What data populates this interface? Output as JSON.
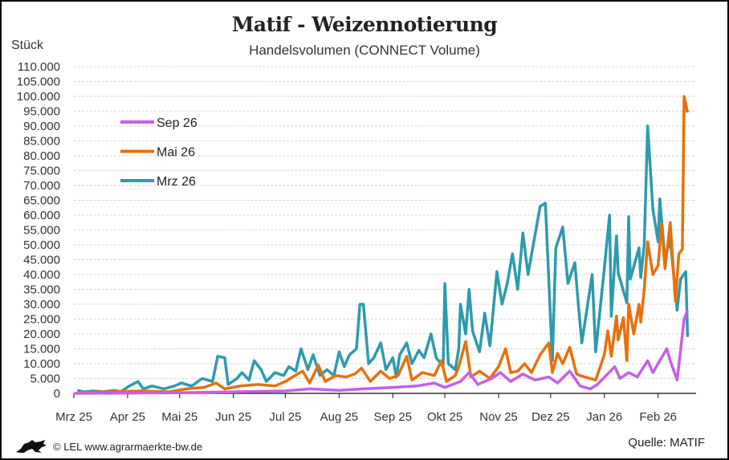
{
  "header": {
    "title": "Matif - Weizennotierung",
    "subtitle": "Handelsvolumen (CONNECT Volume)",
    "unit": "Stück"
  },
  "footer": {
    "copyright": "© LEL www.agrarmaerkte-bw.de",
    "source": "Quelle: MATIF",
    "logo_icon": "lion-icon"
  },
  "chart_data": {
    "type": "line",
    "title": "Matif - Weizennotierung",
    "subtitle": "Handelsvolumen (CONNECT Volume)",
    "ylabel": "Stück",
    "ylim": [
      0,
      110000
    ],
    "yticks": [
      "0",
      "5.000",
      "10.000",
      "15.000",
      "20.000",
      "25.000",
      "30.000",
      "35.000",
      "40.000",
      "45.000",
      "50.000",
      "55.000",
      "60.000",
      "65.000",
      "70.000",
      "75.000",
      "80.000",
      "85.000",
      "90.000",
      "95.000",
      "100.000",
      "105.000",
      "110.000"
    ],
    "xlim": [
      "2025-03-01",
      "2026-03-01"
    ],
    "xticks": [
      {
        "date": "2025-03-01",
        "label": "Mrz 25"
      },
      {
        "date": "2025-04-01",
        "label": "Apr 25"
      },
      {
        "date": "2025-05-01",
        "label": "Mai 25"
      },
      {
        "date": "2025-06-01",
        "label": "Jun 25"
      },
      {
        "date": "2025-07-01",
        "label": "Jul 25"
      },
      {
        "date": "2025-08-01",
        "label": "Aug 25"
      },
      {
        "date": "2025-09-01",
        "label": "Sep 25"
      },
      {
        "date": "2025-10-01",
        "label": "Okt 25"
      },
      {
        "date": "2025-11-01",
        "label": "Nov 25"
      },
      {
        "date": "2025-12-01",
        "label": "Dez 25"
      },
      {
        "date": "2026-01-01",
        "label": "Jan 26"
      },
      {
        "date": "2026-02-01",
        "label": "Feb 26"
      }
    ],
    "grid": "horizontal dashed",
    "legend_position": "top-left",
    "series": [
      {
        "name": "Mrz 26",
        "color": "#2e9aad",
        "points": [
          [
            "2025-03-03",
            1000
          ],
          [
            "2025-03-07",
            500
          ],
          [
            "2025-03-12",
            800
          ],
          [
            "2025-03-18",
            500
          ],
          [
            "2025-03-24",
            1000
          ],
          [
            "2025-03-28",
            600
          ],
          [
            "2025-04-02",
            2500
          ],
          [
            "2025-04-07",
            4000
          ],
          [
            "2025-04-10",
            1500
          ],
          [
            "2025-04-15",
            2500
          ],
          [
            "2025-04-22",
            1500
          ],
          [
            "2025-04-28",
            2500
          ],
          [
            "2025-05-02",
            3500
          ],
          [
            "2025-05-08",
            2500
          ],
          [
            "2025-05-14",
            5000
          ],
          [
            "2025-05-20",
            4000
          ],
          [
            "2025-05-23",
            12500
          ],
          [
            "2025-05-27",
            12000
          ],
          [
            "2025-05-29",
            3000
          ],
          [
            "2025-06-03",
            5000
          ],
          [
            "2025-06-06",
            7000
          ],
          [
            "2025-06-10",
            4500
          ],
          [
            "2025-06-13",
            11000
          ],
          [
            "2025-06-17",
            8000
          ],
          [
            "2025-06-20",
            4000
          ],
          [
            "2025-06-25",
            7000
          ],
          [
            "2025-06-30",
            6000
          ],
          [
            "2025-07-03",
            9000
          ],
          [
            "2025-07-07",
            7500
          ],
          [
            "2025-07-10",
            15000
          ],
          [
            "2025-07-14",
            8000
          ],
          [
            "2025-07-17",
            13000
          ],
          [
            "2025-07-21",
            6000
          ],
          [
            "2025-07-25",
            8000
          ],
          [
            "2025-07-29",
            6000
          ],
          [
            "2025-08-01",
            14000
          ],
          [
            "2025-08-04",
            9000
          ],
          [
            "2025-08-07",
            13000
          ],
          [
            "2025-08-11",
            15000
          ],
          [
            "2025-08-13",
            30000
          ],
          [
            "2025-08-15",
            30000
          ],
          [
            "2025-08-18",
            10000
          ],
          [
            "2025-08-21",
            12000
          ],
          [
            "2025-08-25",
            17000
          ],
          [
            "2025-08-28",
            8000
          ],
          [
            "2025-09-01",
            12000
          ],
          [
            "2025-09-03",
            5500
          ],
          [
            "2025-09-05",
            13000
          ],
          [
            "2025-09-09",
            17000
          ],
          [
            "2025-09-12",
            10000
          ],
          [
            "2025-09-16",
            14500
          ],
          [
            "2025-09-19",
            12000
          ],
          [
            "2025-09-23",
            20000
          ],
          [
            "2025-09-26",
            12000
          ],
          [
            "2025-09-30",
            9000
          ],
          [
            "2025-10-01",
            37000
          ],
          [
            "2025-10-03",
            10000
          ],
          [
            "2025-10-07",
            8000
          ],
          [
            "2025-10-09",
            15000
          ],
          [
            "2025-10-10",
            30000
          ],
          [
            "2025-10-13",
            20000
          ],
          [
            "2025-10-15",
            35000
          ],
          [
            "2025-10-17",
            21000
          ],
          [
            "2025-10-21",
            14000
          ],
          [
            "2025-10-24",
            27000
          ],
          [
            "2025-10-27",
            16000
          ],
          [
            "2025-10-31",
            41000
          ],
          [
            "2025-11-03",
            30000
          ],
          [
            "2025-11-06",
            37000
          ],
          [
            "2025-11-09",
            47000
          ],
          [
            "2025-11-12",
            35000
          ],
          [
            "2025-11-15",
            54000
          ],
          [
            "2025-11-18",
            40000
          ],
          [
            "2025-11-21",
            50000
          ],
          [
            "2025-11-25",
            63000
          ],
          [
            "2025-11-28",
            64000
          ],
          [
            "2025-12-02",
            11000
          ],
          [
            "2025-12-04",
            49000
          ],
          [
            "2025-12-08",
            56000
          ],
          [
            "2025-12-11",
            37000
          ],
          [
            "2025-12-15",
            44000
          ],
          [
            "2025-12-17",
            30000
          ],
          [
            "2025-12-19",
            17000
          ],
          [
            "2025-12-25",
            40000
          ],
          [
            "2025-12-27",
            14000
          ],
          [
            "2026-01-01",
            42000
          ],
          [
            "2026-01-04",
            60000
          ],
          [
            "2026-01-05",
            26000
          ],
          [
            "2026-01-08",
            53000
          ],
          [
            "2026-01-09",
            40500
          ],
          [
            "2026-01-14",
            30500
          ],
          [
            "2026-01-15",
            59500
          ],
          [
            "2026-01-16",
            38500
          ],
          [
            "2026-01-21",
            49000
          ],
          [
            "2026-01-22",
            39000
          ],
          [
            "2026-01-24",
            50000
          ],
          [
            "2026-01-26",
            90000
          ],
          [
            "2026-01-29",
            62000
          ],
          [
            "2026-02-01",
            51000
          ],
          [
            "2026-02-02",
            65500
          ],
          [
            "2026-02-05",
            45000
          ],
          [
            "2026-02-08",
            52000
          ],
          [
            "2026-02-12",
            28000
          ],
          [
            "2026-02-14",
            38500
          ],
          [
            "2026-02-17",
            41000
          ],
          [
            "2026-02-18",
            19000
          ]
        ]
      },
      {
        "name": "Mai 26",
        "color": "#e8700c",
        "points": [
          [
            "2025-03-03",
            300
          ],
          [
            "2025-03-20",
            500
          ],
          [
            "2025-04-10",
            800
          ],
          [
            "2025-04-25",
            500
          ],
          [
            "2025-05-05",
            1500
          ],
          [
            "2025-05-15",
            2000
          ],
          [
            "2025-05-22",
            3500
          ],
          [
            "2025-05-27",
            1500
          ],
          [
            "2025-06-05",
            2500
          ],
          [
            "2025-06-15",
            3000
          ],
          [
            "2025-06-25",
            2500
          ],
          [
            "2025-07-01",
            4000
          ],
          [
            "2025-07-08",
            6500
          ],
          [
            "2025-07-11",
            7500
          ],
          [
            "2025-07-15",
            3500
          ],
          [
            "2025-07-20",
            9500
          ],
          [
            "2025-07-24",
            4000
          ],
          [
            "2025-07-30",
            6000
          ],
          [
            "2025-08-05",
            5500
          ],
          [
            "2025-08-10",
            6500
          ],
          [
            "2025-08-14",
            8500
          ],
          [
            "2025-08-19",
            4000
          ],
          [
            "2025-08-25",
            7500
          ],
          [
            "2025-08-30",
            5000
          ],
          [
            "2025-09-04",
            6000
          ],
          [
            "2025-09-09",
            12500
          ],
          [
            "2025-09-12",
            4500
          ],
          [
            "2025-09-18",
            7000
          ],
          [
            "2025-09-25",
            6000
          ],
          [
            "2025-09-29",
            11000
          ],
          [
            "2025-10-02",
            4000
          ],
          [
            "2025-10-07",
            6000
          ],
          [
            "2025-10-09",
            9000
          ],
          [
            "2025-10-13",
            17500
          ],
          [
            "2025-10-16",
            5500
          ],
          [
            "2025-10-21",
            7500
          ],
          [
            "2025-10-27",
            5000
          ],
          [
            "2025-11-01",
            9000
          ],
          [
            "2025-11-05",
            15000
          ],
          [
            "2025-11-08",
            7000
          ],
          [
            "2025-11-12",
            7500
          ],
          [
            "2025-11-16",
            10000
          ],
          [
            "2025-11-20",
            7000
          ],
          [
            "2025-11-25",
            13000
          ],
          [
            "2025-11-30",
            17000
          ],
          [
            "2025-12-02",
            7000
          ],
          [
            "2025-12-05",
            13500
          ],
          [
            "2025-12-08",
            10000
          ],
          [
            "2025-12-12",
            15500
          ],
          [
            "2025-12-16",
            6500
          ],
          [
            "2025-12-18",
            6000
          ],
          [
            "2025-12-27",
            4500
          ],
          [
            "2026-01-01",
            13000
          ],
          [
            "2026-01-03",
            21000
          ],
          [
            "2026-01-05",
            12500
          ],
          [
            "2026-01-08",
            26000
          ],
          [
            "2026-01-09",
            18000
          ],
          [
            "2026-01-12",
            25500
          ],
          [
            "2026-01-14",
            11000
          ],
          [
            "2026-01-15",
            30000
          ],
          [
            "2026-01-18",
            20000
          ],
          [
            "2026-01-21",
            30000
          ],
          [
            "2026-01-22",
            24000
          ],
          [
            "2026-01-24",
            35000
          ],
          [
            "2026-01-26",
            51000
          ],
          [
            "2026-01-29",
            40000
          ],
          [
            "2026-02-01",
            43000
          ],
          [
            "2026-02-03",
            57000
          ],
          [
            "2026-02-05",
            42000
          ],
          [
            "2026-02-08",
            57500
          ],
          [
            "2026-02-11",
            31000
          ],
          [
            "2026-02-13",
            47000
          ],
          [
            "2026-02-15",
            48500
          ],
          [
            "2026-02-16",
            100000
          ],
          [
            "2026-02-18",
            94500
          ]
        ]
      },
      {
        "name": "Sep 26",
        "color": "#c560e8",
        "points": [
          [
            "2025-03-01",
            0
          ],
          [
            "2025-05-01",
            200
          ],
          [
            "2025-06-01",
            500
          ],
          [
            "2025-07-01",
            800
          ],
          [
            "2025-07-15",
            1500
          ],
          [
            "2025-08-01",
            1000
          ],
          [
            "2025-08-15",
            1500
          ],
          [
            "2025-09-01",
            2000
          ],
          [
            "2025-09-15",
            2500
          ],
          [
            "2025-09-25",
            3500
          ],
          [
            "2025-10-01",
            2000
          ],
          [
            "2025-10-10",
            4000
          ],
          [
            "2025-10-15",
            7000
          ],
          [
            "2025-10-20",
            3000
          ],
          [
            "2025-10-28",
            5000
          ],
          [
            "2025-11-02",
            7000
          ],
          [
            "2025-11-08",
            4000
          ],
          [
            "2025-11-15",
            6500
          ],
          [
            "2025-11-22",
            4500
          ],
          [
            "2025-11-30",
            5500
          ],
          [
            "2025-12-05",
            3500
          ],
          [
            "2025-12-12",
            7500
          ],
          [
            "2025-12-18",
            2500
          ],
          [
            "2025-12-24",
            1500
          ],
          [
            "2025-12-28",
            3000
          ],
          [
            "2026-01-02",
            6000
          ],
          [
            "2026-01-07",
            9000
          ],
          [
            "2026-01-10",
            5000
          ],
          [
            "2026-01-15",
            7000
          ],
          [
            "2026-01-20",
            5500
          ],
          [
            "2026-01-26",
            11000
          ],
          [
            "2026-01-29",
            7000
          ],
          [
            "2026-02-02",
            11000
          ],
          [
            "2026-02-06",
            15000
          ],
          [
            "2026-02-08",
            11000
          ],
          [
            "2026-02-12",
            4500
          ],
          [
            "2026-02-16",
            25000
          ],
          [
            "2026-02-18",
            28000
          ]
        ]
      }
    ],
    "legend_order": [
      "Sep 26",
      "Mai 26",
      "Mrz 26"
    ]
  }
}
